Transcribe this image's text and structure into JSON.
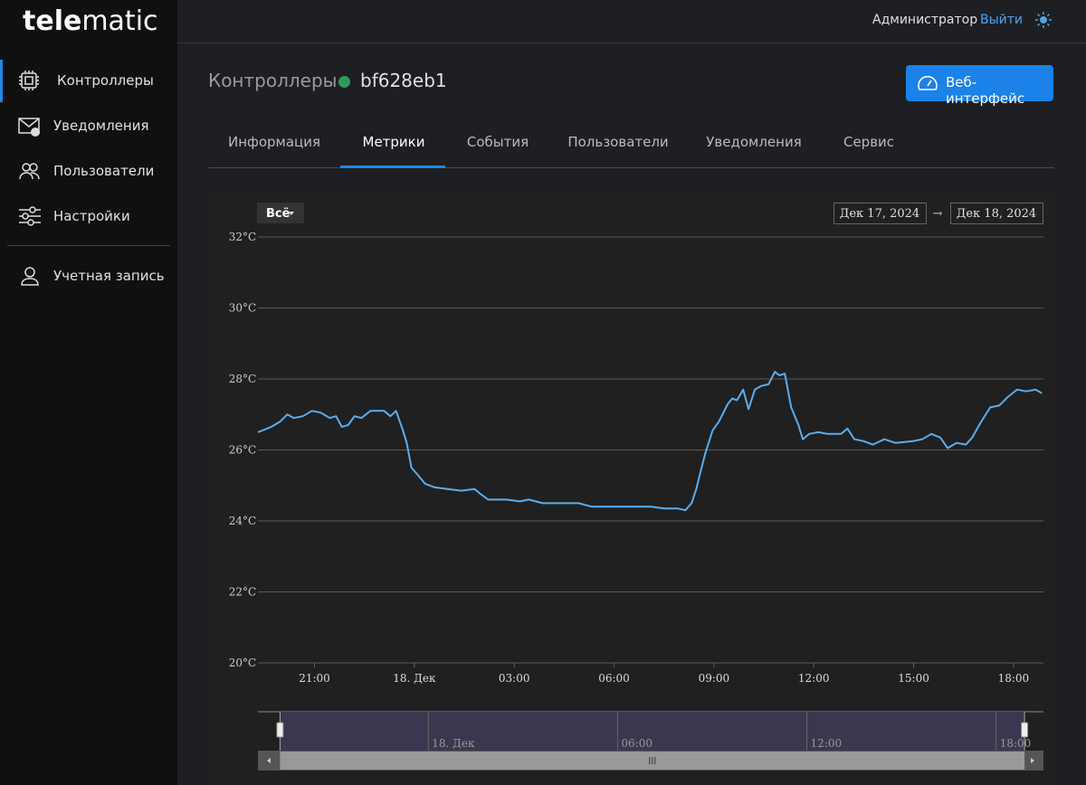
{
  "header": {
    "logo_bold": "tele",
    "logo_light": "matic",
    "user": "Администратор",
    "logout": "Выйти"
  },
  "sidebar": {
    "items": [
      "Контроллеры",
      "Уведомления",
      "Пользователи",
      "Настройки"
    ],
    "account": "Учетная запись"
  },
  "page": {
    "breadcrumb": "Контроллеры",
    "device": "bf628eb1",
    "web_button": "Веб-интерфейс",
    "tabs": [
      "Информация",
      "Метрики",
      "События",
      "Пользователи",
      "Уведомления",
      "Сервис"
    ]
  },
  "chart_data": {
    "type": "line",
    "range_button": "Всё",
    "date_from": "Дек 17, 2024",
    "date_arrow": "→",
    "date_to": "Дек 18, 2024",
    "x": [
      19.3,
      19.7,
      19.97,
      20.18,
      20.38,
      20.65,
      20.92,
      21.19,
      21.46,
      21.65,
      21.82,
      22.01,
      22.2,
      22.41,
      22.68,
      23.09,
      23.28,
      23.45,
      23.64,
      23.77,
      23.91,
      24.1,
      24.32,
      24.59,
      25.0,
      25.4,
      25.81,
      26.0,
      26.22,
      26.76,
      27.17,
      27.44,
      27.85,
      28.93,
      29.34,
      30.57,
      31.11,
      31.52,
      31.92,
      32.14,
      32.33,
      32.47,
      32.6,
      32.74,
      32.96,
      33.15,
      33.42,
      33.55,
      33.69,
      33.88,
      34.04,
      34.23,
      34.42,
      34.64,
      34.83,
      34.97,
      35.13,
      35.32,
      35.54,
      35.67,
      35.86,
      36.14,
      36.41,
      36.82,
      37.01,
      37.22,
      37.49,
      37.77,
      38.12,
      38.45,
      38.99,
      39.26,
      39.53,
      39.8,
      40.02,
      40.29,
      40.57,
      40.76,
      41.03,
      41.3,
      41.57,
      41.84,
      42.11,
      42.39,
      42.66,
      42.85
    ],
    "values": [
      26.5,
      26.65,
      26.8,
      27.0,
      26.9,
      26.95,
      27.1,
      27.05,
      26.9,
      26.95,
      26.65,
      26.7,
      26.95,
      26.9,
      27.1,
      27.1,
      26.95,
      27.1,
      26.6,
      26.2,
      25.5,
      25.3,
      25.05,
      24.95,
      24.9,
      24.85,
      24.9,
      24.75,
      24.6,
      24.6,
      24.55,
      24.6,
      24.5,
      24.5,
      24.4,
      24.4,
      24.4,
      24.35,
      24.35,
      24.3,
      24.5,
      24.9,
      25.4,
      25.9,
      26.55,
      26.8,
      27.3,
      27.45,
      27.4,
      27.7,
      27.15,
      27.7,
      27.8,
      27.85,
      28.2,
      28.1,
      28.15,
      27.2,
      26.7,
      26.3,
      26.45,
      26.5,
      26.45,
      26.45,
      26.6,
      26.3,
      26.25,
      26.15,
      26.3,
      26.2,
      26.25,
      26.3,
      26.45,
      26.35,
      26.05,
      26.2,
      26.15,
      26.35,
      26.8,
      27.2,
      27.25,
      27.5,
      27.7,
      27.65,
      27.7,
      27.6
    ],
    "color": "#5aaef0",
    "xlim": [
      19.3,
      42.9
    ],
    "xticks": [
      {
        "value": 21,
        "label": "21:00"
      },
      {
        "value": 24,
        "label": "18. Дек"
      },
      {
        "value": 27,
        "label": "03:00"
      },
      {
        "value": 30,
        "label": "06:00"
      },
      {
        "value": 33,
        "label": "09:00"
      },
      {
        "value": 36,
        "label": "12:00"
      },
      {
        "value": 39,
        "label": "15:00"
      },
      {
        "value": 42,
        "label": "18:00"
      }
    ],
    "ylim": [
      20,
      32
    ],
    "yticks": [
      {
        "value": 20,
        "label": "20°C"
      },
      {
        "value": 22,
        "label": "22°C"
      },
      {
        "value": 24,
        "label": "24°C"
      },
      {
        "value": 26,
        "label": "26°C"
      },
      {
        "value": 28,
        "label": "28°C"
      },
      {
        "value": 30,
        "label": "30°C"
      },
      {
        "value": 32,
        "label": "32°C"
      }
    ],
    "grid": true,
    "navigator": {
      "xlim": [
        18.6,
        43.5
      ],
      "xticks": [
        {
          "value": 24,
          "label": "18. Дек"
        },
        {
          "value": 30,
          "label": "06:00"
        },
        {
          "value": 36,
          "label": "12:00"
        },
        {
          "value": 42,
          "label": "18:00"
        }
      ]
    }
  }
}
